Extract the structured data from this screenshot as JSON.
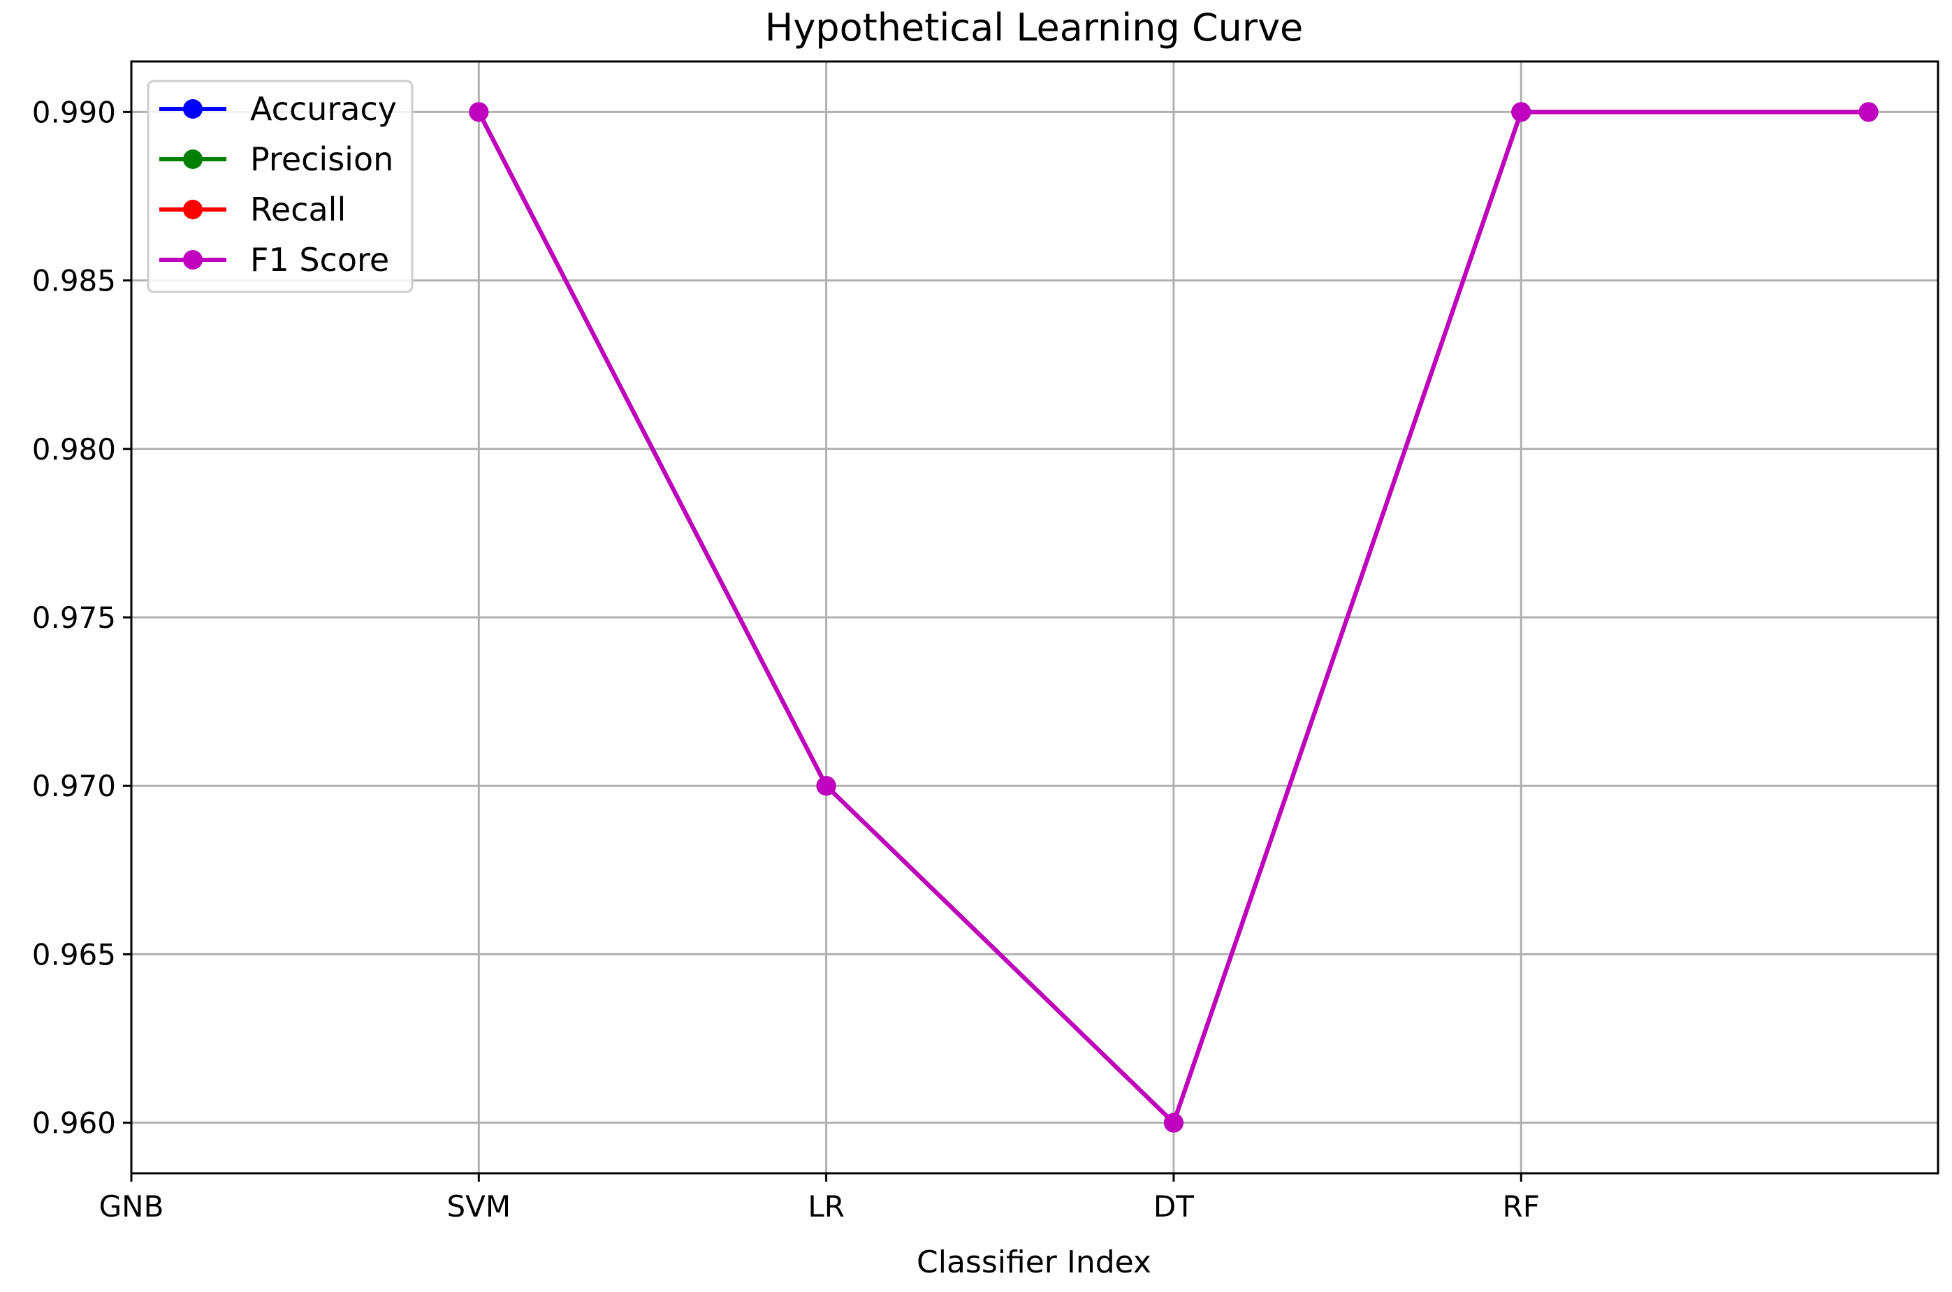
{
  "chart_data": {
    "type": "line",
    "title": "Hypothetical Learning Curve",
    "xlabel": "Classifier Index",
    "ylabel": "",
    "categories": [
      "GNB",
      "SVM",
      "LR",
      "DT",
      "RF",
      ""
    ],
    "x": [
      0,
      1,
      2,
      3,
      4,
      5
    ],
    "x_tick_labels": [
      "GNB",
      "SVM",
      "LR",
      "DT",
      "RF"
    ],
    "xlim": [
      0,
      5.2
    ],
    "ylim": [
      0.9585,
      0.9915
    ],
    "y_ticks": [
      0.96,
      0.965,
      0.97,
      0.975,
      0.98,
      0.985,
      0.99
    ],
    "y_tick_labels": [
      "0.960",
      "0.965",
      "0.970",
      "0.975",
      "0.980",
      "0.985",
      "0.990"
    ],
    "grid": true,
    "legend_position": "top-left",
    "series": [
      {
        "name": "Accuracy",
        "color": "#0000ff",
        "marker": "circle",
        "values": [
          null,
          0.99,
          0.97,
          0.96,
          0.99,
          0.99
        ]
      },
      {
        "name": "Precision",
        "color": "#008000",
        "marker": "circle",
        "values": [
          null,
          0.99,
          0.97,
          0.96,
          0.99,
          0.99
        ]
      },
      {
        "name": "Recall",
        "color": "#ff0000",
        "marker": "circle",
        "values": [
          null,
          0.99,
          0.97,
          0.96,
          0.99,
          0.99
        ]
      },
      {
        "name": "F1 Score",
        "color": "#bf00bf",
        "marker": "circle",
        "values": [
          null,
          0.99,
          0.97,
          0.96,
          0.99,
          0.99
        ]
      }
    ]
  }
}
